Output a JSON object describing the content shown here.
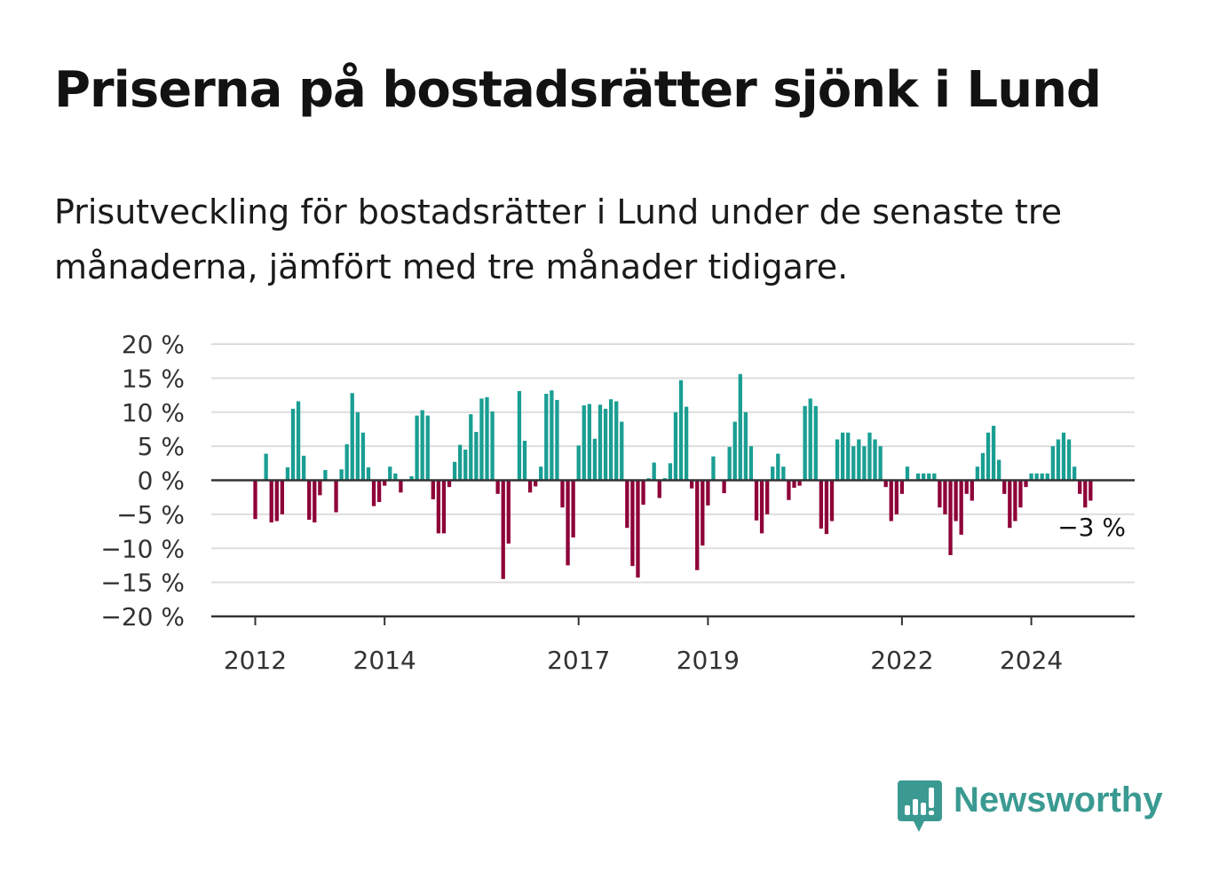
{
  "title": "Priserna på bostadsrätter sjönk i Lund",
  "subtitle": "Prisutveckling för bostadsrätter i Lund under de senaste tre månaderna, jämfört med tre månader tidigare.",
  "colors": {
    "positive": "#1a9e93",
    "negative": "#8e0038",
    "grid": "#dddddd",
    "axis": "#333333",
    "logo": "#3a9a92"
  },
  "logo": {
    "text": "Newsworthy",
    "icon": "newsworthy-bar-chart-icon"
  },
  "chart_data": {
    "type": "bar",
    "title": "",
    "xlabel": "",
    "ylabel": "",
    "unit": "%",
    "ylim": [
      -20,
      20
    ],
    "y_ticks": [
      20,
      15,
      10,
      5,
      0,
      -5,
      -10,
      -15,
      -20
    ],
    "y_tick_labels": [
      "20 %",
      "15 %",
      "10 %",
      "5 %",
      "0 %",
      "−5 %",
      "−10 %",
      "−15 %",
      "−20 %"
    ],
    "x_ticks": [
      "2012",
      "2014",
      "2017",
      "2019",
      "2022",
      "2024"
    ],
    "grid": true,
    "legend": "none",
    "start_month": "2012-01",
    "end_annotation": "−3 %",
    "values": [
      -5.7,
      0,
      3.9,
      -6.2,
      -6.0,
      -5.0,
      1.9,
      10.5,
      11.6,
      3.6,
      -5.8,
      -6.2,
      -2.2,
      1.5,
      0,
      -4.7,
      1.6,
      5.3,
      12.8,
      10.0,
      7.0,
      1.9,
      -3.8,
      -3.2,
      -0.8,
      2.0,
      1.0,
      -1.8,
      0,
      0.6,
      9.5,
      10.3,
      9.5,
      -2.8,
      -7.8,
      -7.8,
      -1.0,
      2.7,
      5.2,
      4.5,
      9.7,
      7.1,
      12.0,
      12.2,
      10.1,
      -2.0,
      -14.5,
      -9.3,
      0,
      13.1,
      5.8,
      -1.8,
      -0.9,
      2.0,
      12.7,
      13.2,
      11.8,
      -4.0,
      -12.5,
      -8.4,
      5.1,
      11.0,
      11.2,
      6.1,
      11.1,
      10.5,
      11.9,
      11.6,
      8.6,
      -7.0,
      -12.6,
      -14.3,
      -3.6,
      0.3,
      2.6,
      -2.6,
      0.3,
      2.5,
      10.0,
      14.7,
      10.8,
      -1.2,
      -13.2,
      -9.6,
      -3.7,
      3.5,
      0,
      -1.9,
      4.9,
      8.6,
      15.6,
      10.0,
      5.0,
      -5.9,
      -7.8,
      -5.0,
      2.0,
      3.9,
      2.0,
      -2.9,
      -1.1,
      -0.8,
      10.9,
      12.0,
      10.9,
      -7.1,
      -7.9,
      -6.0,
      6.0,
      7.0,
      7.0,
      5.0,
      6.0,
      5.0,
      7.0,
      6.0,
      5.0,
      -1.0,
      -6.0,
      -5.0,
      -2.0,
      2.0,
      0,
      1.0,
      1.0,
      1.0,
      1.0,
      -4.0,
      -5.0,
      -11.0,
      -6.0,
      -8.0,
      -2.0,
      -3.0,
      2.0,
      4.0,
      7.0,
      8.0,
      3.0,
      -2.0,
      -7.0,
      -6.0,
      -4.0,
      -1.0,
      1.0,
      1.0,
      1.0,
      1.0,
      5.0,
      6.0,
      7.0,
      6.0,
      2.0,
      -2.0,
      -4.0,
      -3.0
    ]
  }
}
